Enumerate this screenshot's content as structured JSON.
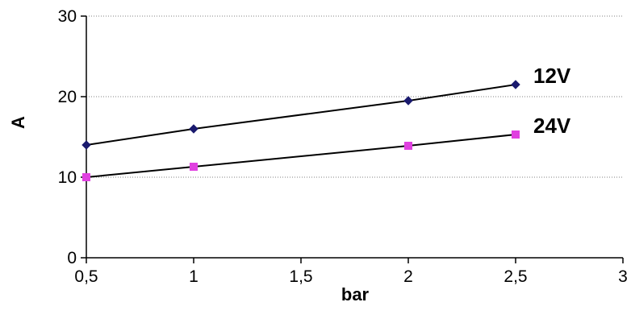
{
  "chart_data": {
    "type": "line",
    "xlabel": "bar",
    "ylabel": "A",
    "xlim": [
      0.5,
      3
    ],
    "ylim": [
      0,
      30
    ],
    "x_ticks": [
      "0,5",
      "1",
      "1,5",
      "2",
      "2,5",
      "3"
    ],
    "x_tick_values": [
      0.5,
      1,
      1.5,
      2,
      2.5,
      3
    ],
    "y_ticks": [
      "0",
      "10",
      "20",
      "30"
    ],
    "y_tick_values": [
      0,
      10,
      20,
      30
    ],
    "grid": "horizontal dotted",
    "series": [
      {
        "name": "12V",
        "marker": "diamond",
        "marker_color": "#1a1a6e",
        "line_color": "#000000",
        "x": [
          0.5,
          1,
          2,
          2.5
        ],
        "y": [
          14,
          16,
          19.5,
          21.5
        ]
      },
      {
        "name": "24V",
        "marker": "square",
        "marker_color": "#e040e0",
        "line_color": "#000000",
        "x": [
          0.5,
          1,
          2,
          2.5
        ],
        "y": [
          10,
          11.3,
          13.9,
          15.3
        ]
      }
    ]
  }
}
